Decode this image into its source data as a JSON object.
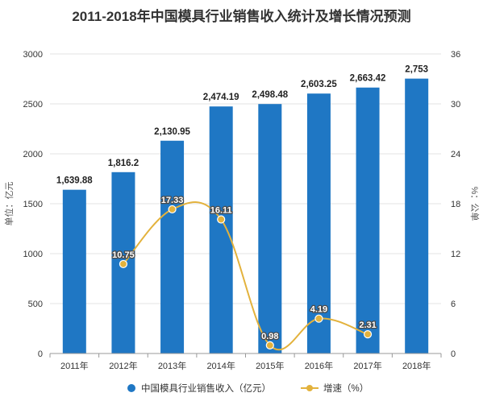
{
  "chart_data": {
    "type": "bar",
    "title": "2011-2018年中国模具行业销售收入统计及增长情况预测",
    "categories": [
      "2011年",
      "2012年",
      "2013年",
      "2014年",
      "2015年",
      "2016年",
      "2017年",
      "2018年"
    ],
    "series": [
      {
        "name": "中国模具行业销售收入（亿元）",
        "type": "bar",
        "axis": "left",
        "color": "#1f77c4",
        "values": [
          1639.88,
          1816.2,
          2130.95,
          2474.19,
          2498.48,
          2603.25,
          2663.42,
          2753
        ],
        "labels": [
          "1,639.88",
          "1,816.2",
          "2,130.95",
          "2,474.19",
          "2,498.48",
          "2,603.25",
          "2,663.42",
          "2,753"
        ]
      },
      {
        "name": "增速（%）",
        "type": "line",
        "axis": "right",
        "color": "#e3b23c",
        "values": [
          null,
          10.75,
          17.33,
          16.11,
          0.98,
          4.19,
          2.31,
          null
        ],
        "labels": [
          "",
          "10.75",
          "17.33",
          "16.11",
          "0.98",
          "4.19",
          "2.31",
          ""
        ]
      }
    ],
    "y_left": {
      "label": "单位：亿元",
      "min": 0,
      "max": 3000,
      "ticks": [
        "0",
        "500",
        "1000",
        "1500",
        "2000",
        "2500",
        "3000"
      ]
    },
    "y_right": {
      "label": "%：公单",
      "min": 0,
      "max": 36,
      "ticks": [
        "0",
        "6",
        "12",
        "18",
        "24",
        "30",
        "36"
      ]
    },
    "grid": true,
    "legend_position": "bottom"
  }
}
